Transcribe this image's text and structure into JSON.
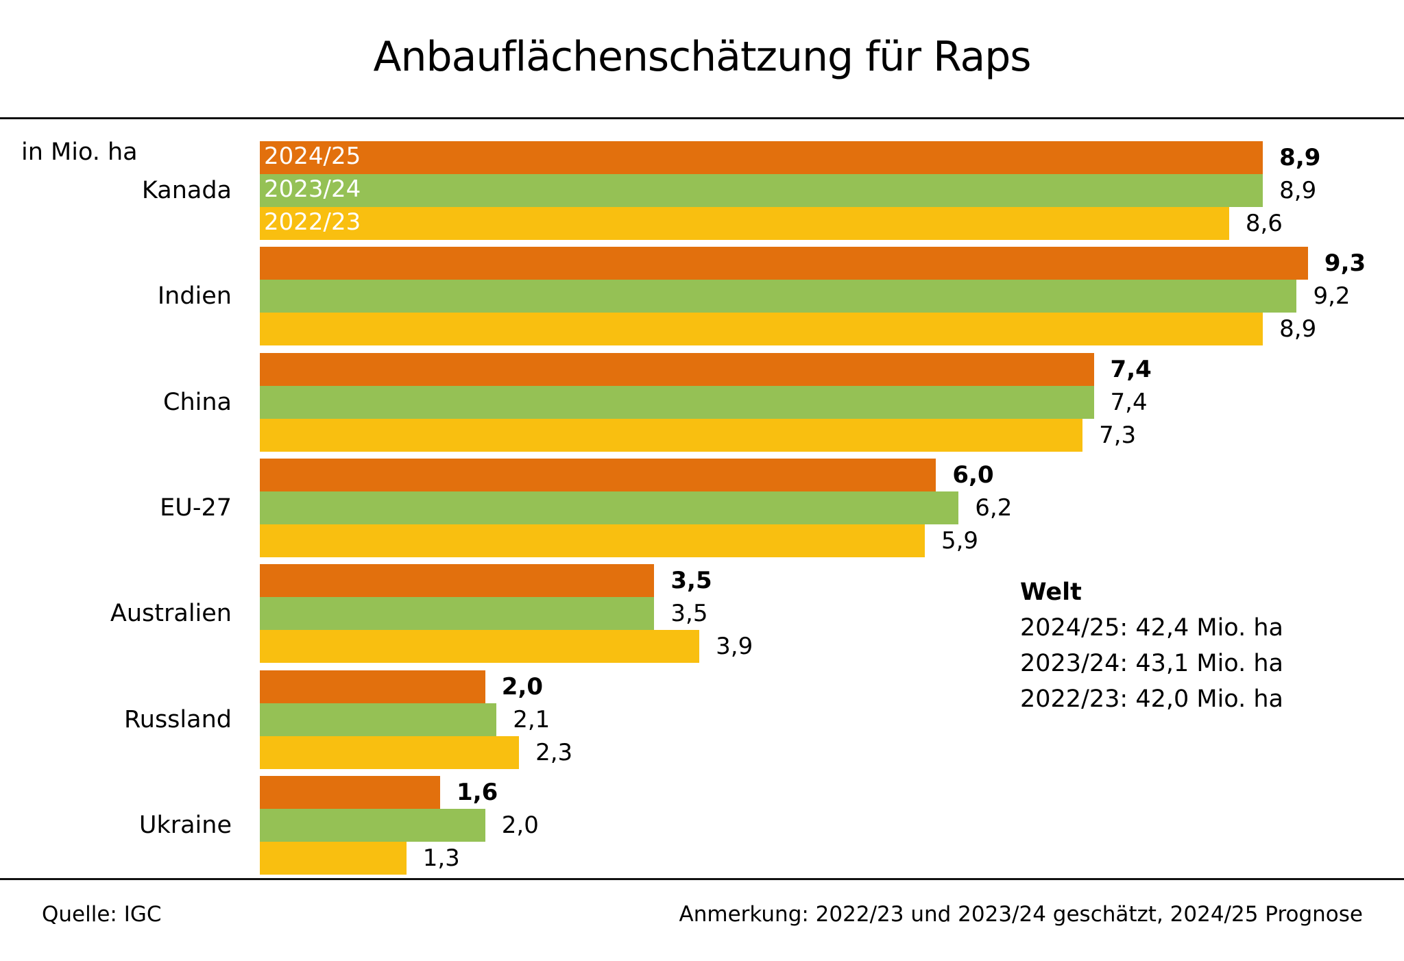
{
  "chart_data": {
    "type": "bar",
    "orientation": "horizontal",
    "title": "Anbauflächenschätzung für Raps",
    "unit_label": "in Mio. ha",
    "categories": [
      "Kanada",
      "Indien",
      "China",
      "EU-27",
      "Australien",
      "Russland",
      "Ukraine"
    ],
    "series": [
      {
        "name": "2024/25",
        "color": "#E2700D",
        "bold_labels": true,
        "values": [
          8.9,
          9.3,
          7.4,
          6.0,
          3.5,
          2.0,
          1.6
        ],
        "labels": [
          "8,9",
          "9,3",
          "7,4",
          "6,0",
          "3,5",
          "2,0",
          "1,6"
        ]
      },
      {
        "name": "2023/24",
        "color": "#95C155",
        "bold_labels": false,
        "values": [
          8.9,
          9.2,
          7.4,
          6.2,
          3.5,
          2.1,
          2.0
        ],
        "labels": [
          "8,9",
          "9,2",
          "7,4",
          "6,2",
          "3,5",
          "2,1",
          "2,0"
        ]
      },
      {
        "name": "2022/23",
        "color": "#F9BF10",
        "bold_labels": false,
        "values": [
          8.6,
          8.9,
          7.3,
          5.9,
          3.9,
          2.3,
          1.3
        ],
        "labels": [
          "8,6",
          "8,9",
          "7,3",
          "5,9",
          "3,9",
          "2,3",
          "1,3"
        ]
      }
    ],
    "xlim": [
      0,
      9.3
    ],
    "grid": false,
    "legend": "inside-first-group-bars"
  },
  "world": {
    "heading": "Welt",
    "lines": [
      "2024/25: 42,4 Mio. ha",
      "2023/24: 43,1 Mio. ha",
      "2022/23: 42,0 Mio. ha"
    ]
  },
  "footer": {
    "source": "Quelle: IGC",
    "note": "Anmerkung: 2022/23 und 2023/24 geschätzt, 2024/25 Prognose"
  }
}
